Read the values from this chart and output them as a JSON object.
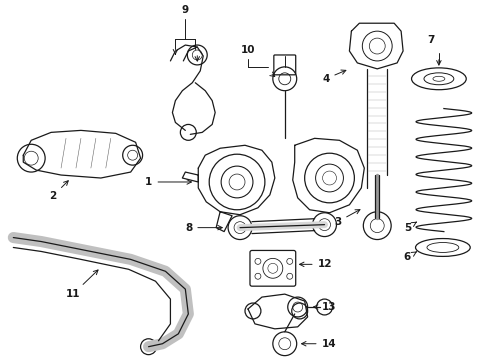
{
  "background_color": "#ffffff",
  "figure_width": 4.9,
  "figure_height": 3.6,
  "dpi": 100,
  "line_color": "#1a1a1a",
  "label_fontsize": 7.5,
  "label_color": "#1a1a1a",
  "gray_fill": "#cccccc",
  "mid_gray": "#888888"
}
